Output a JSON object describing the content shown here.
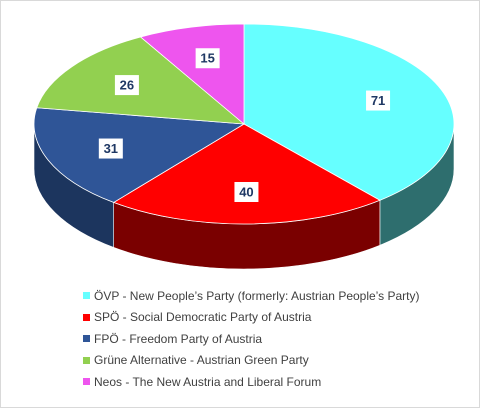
{
  "chart_data": {
    "type": "pie",
    "style": "3d-exploded-none",
    "categories": [
      "ÖVP - New People’s Party (formerly: Austrian People’s Party)",
      "SPÖ - Social Democratic Party of Austria",
      "FPÖ - Freedom Party of Austria",
      "Grüne Alternative - Austrian Green Party",
      "Neos - The New Austria and Liberal Forum"
    ],
    "values": [
      71,
      40,
      31,
      26,
      15
    ],
    "colors": [
      "#66ffff",
      "#ff0000",
      "#2f5597",
      "#92d050",
      "#ee55ee"
    ],
    "side_colors": [
      "#2e6e6e",
      "#7a0000",
      "#1c355e",
      "#4f7a28",
      "#8e2e8e"
    ],
    "data_labels": [
      "71",
      "40",
      "31",
      "26",
      "15"
    ],
    "legend_position": "bottom",
    "title": ""
  }
}
